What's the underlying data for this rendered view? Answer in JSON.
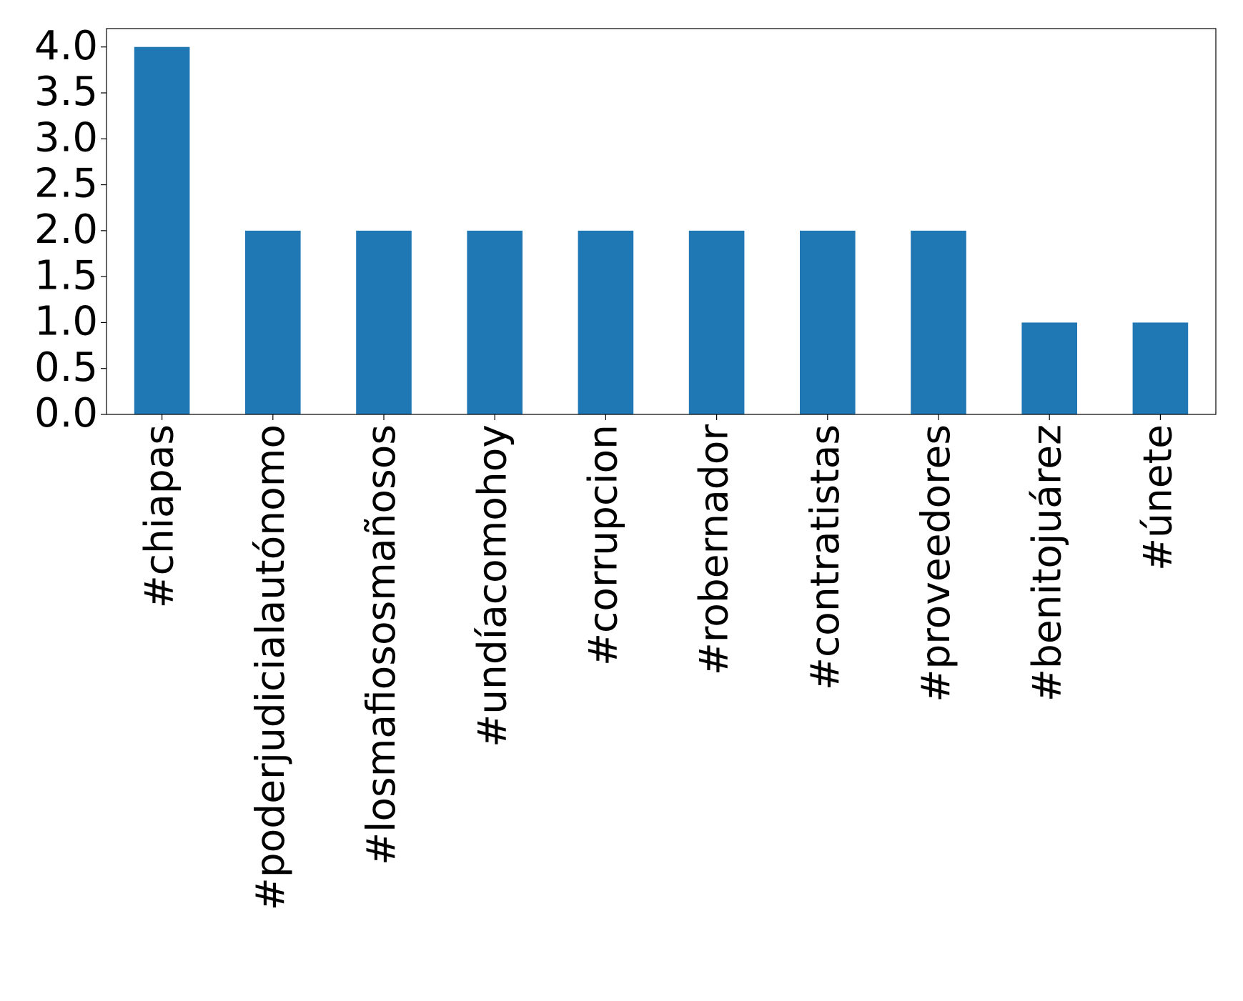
{
  "chart_data": {
    "type": "bar",
    "categories": [
      "#chiapas",
      "#poderjudicialautónomo",
      "#losmafiososmañosos",
      "#undíacomohoy",
      "#corrupcion",
      "#robernador",
      "#contratistas",
      "#proveedores",
      "#benitojuárez",
      "#únete"
    ],
    "values": [
      4,
      2,
      2,
      2,
      2,
      2,
      2,
      2,
      1,
      1
    ],
    "color": "#1f77b4",
    "ylim": [
      0,
      4.2
    ],
    "yticks": [
      {
        "value": 0,
        "label": "0.0"
      },
      {
        "value": 0.5,
        "label": "0.5"
      },
      {
        "value": 1,
        "label": "1.0"
      },
      {
        "value": 1.5,
        "label": "1.5"
      },
      {
        "value": 2,
        "label": "2.0"
      },
      {
        "value": 2.5,
        "label": "2.5"
      },
      {
        "value": 3,
        "label": "3.0"
      },
      {
        "value": 3.5,
        "label": "3.5"
      },
      {
        "value": 4,
        "label": "4.0"
      }
    ],
    "grid": false
  }
}
